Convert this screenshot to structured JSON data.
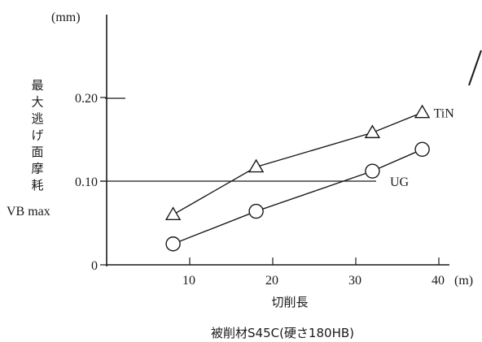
{
  "chart_data": {
    "type": "line",
    "y_unit": "(mm)",
    "x_unit": "(m)",
    "ylabel_lines": [
      "最",
      "大",
      "逃",
      "げ",
      "面",
      "摩",
      "耗"
    ],
    "ylabel_symbol": "VB max",
    "xlabel": "切削長",
    "caption": "被削材S45C(硬さ180HB)",
    "xlim": [
      0,
      40
    ],
    "ylim": [
      0,
      0.2
    ],
    "x_ticks": [
      {
        "value": 10,
        "label": "10"
      },
      {
        "value": 20,
        "label": "20"
      },
      {
        "value": 30,
        "label": "30"
      },
      {
        "value": 40,
        "label": "40"
      }
    ],
    "y_ticks": [
      {
        "value": 0,
        "label": "0"
      },
      {
        "value": 0.1,
        "label": "0.10"
      },
      {
        "value": 0.2,
        "label": "0.20"
      }
    ],
    "grid_y": [
      0.1
    ],
    "series": [
      {
        "name": "TiN",
        "marker": "triangle",
        "x": [
          8,
          18,
          32,
          38
        ],
        "y": [
          0.06,
          0.117,
          0.158,
          0.182
        ]
      },
      {
        "name": "UG",
        "marker": "circle",
        "x": [
          8,
          18,
          32,
          38
        ],
        "y": [
          0.025,
          0.064,
          0.112,
          0.138
        ]
      }
    ]
  }
}
